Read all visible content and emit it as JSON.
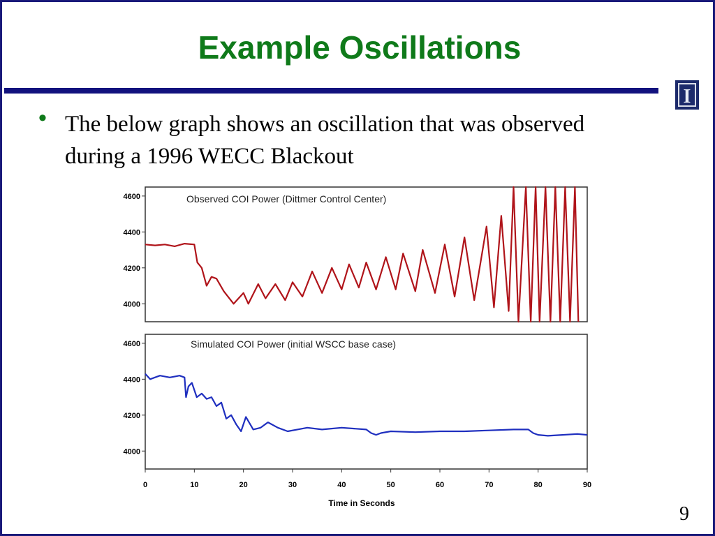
{
  "slide": {
    "title": "Example Oscillations",
    "bullet": "The below graph shows an oscillation that was observed during a 1996 WECC Blackout",
    "page_number": "9",
    "logo_letter": "I"
  },
  "colors": {
    "title": "#0f7a1a",
    "rule": "#12127e",
    "observed": "#b0141a",
    "simulated": "#1f2fbf"
  },
  "chart_data": [
    {
      "type": "line",
      "title": "Observed COI Power (Dittmer Control Center)",
      "ylim": [
        3900,
        4650
      ],
      "xlim": [
        0,
        90
      ],
      "yticks": [
        "4600",
        "4400",
        "4200",
        "4000"
      ],
      "series": [
        {
          "x": [
            0,
            2,
            4,
            6,
            8,
            10,
            10.6,
            11.5,
            12.5,
            13.5,
            14.5,
            16,
            18,
            20,
            21,
            23,
            24.5,
            26.5,
            28.5,
            30,
            32,
            34,
            36,
            38,
            40,
            41.5,
            43.5,
            45,
            47,
            49,
            51,
            52.5,
            55,
            56.5,
            59,
            61,
            63,
            65,
            67,
            69.5,
            71,
            72.5,
            74,
            75,
            76,
            77.5,
            78.5,
            79.5,
            80.3,
            81.5,
            82.5,
            83.5,
            84.5,
            85.5,
            86.5,
            87.5,
            88.2
          ],
          "y": [
            4330,
            4325,
            4330,
            4320,
            4335,
            4330,
            4230,
            4200,
            4100,
            4150,
            4140,
            4070,
            4000,
            4060,
            4000,
            4110,
            4030,
            4110,
            4020,
            4120,
            4040,
            4180,
            4060,
            4200,
            4080,
            4220,
            4090,
            4230,
            4080,
            4260,
            4080,
            4280,
            4070,
            4300,
            4060,
            4330,
            4040,
            4370,
            4020,
            4430,
            3980,
            4490,
            3960,
            4650,
            3900,
            4650,
            3900,
            4650,
            3900,
            4650,
            3900,
            4650,
            3900,
            4650,
            3900,
            4650,
            3900
          ]
        }
      ]
    },
    {
      "type": "line",
      "title": "Simulated COI Power (initial WSCC base case)",
      "xlabel": "Time in Seconds",
      "ylim": [
        3900,
        4650
      ],
      "xlim": [
        0,
        90
      ],
      "yticks": [
        "4600",
        "4400",
        "4200",
        "4000"
      ],
      "xticks": [
        "0",
        "10",
        "20",
        "30",
        "40",
        "50",
        "60",
        "70",
        "80",
        "90"
      ],
      "series": [
        {
          "x": [
            0,
            1,
            3,
            5,
            7,
            8,
            8.3,
            8.8,
            9.5,
            10.5,
            11.5,
            12.5,
            13.5,
            14.5,
            15.5,
            16.5,
            17.5,
            18.5,
            19.5,
            20.5,
            22,
            23.5,
            25,
            27,
            29,
            31,
            33,
            36,
            40,
            45,
            46,
            47,
            48,
            50,
            55,
            60,
            65,
            70,
            75,
            78,
            79,
            80,
            82,
            85,
            88,
            90
          ],
          "y": [
            4430,
            4400,
            4420,
            4410,
            4420,
            4410,
            4300,
            4360,
            4380,
            4300,
            4320,
            4290,
            4300,
            4250,
            4270,
            4180,
            4200,
            4150,
            4110,
            4190,
            4120,
            4130,
            4160,
            4130,
            4110,
            4120,
            4130,
            4120,
            4130,
            4120,
            4100,
            4090,
            4100,
            4110,
            4105,
            4110,
            4110,
            4115,
            4120,
            4120,
            4100,
            4090,
            4085,
            4090,
            4095,
            4090
          ]
        }
      ]
    }
  ]
}
